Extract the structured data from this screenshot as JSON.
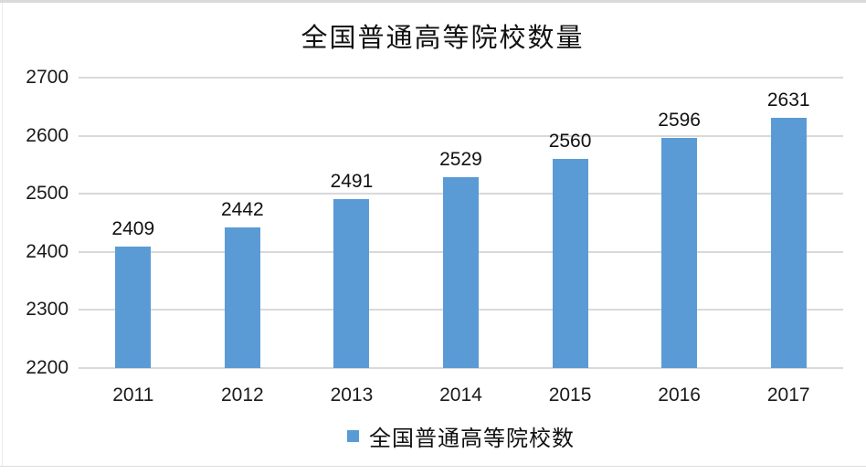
{
  "chart_data": {
    "type": "bar",
    "title": "全国普通高等院校数量",
    "categories": [
      "2011",
      "2012",
      "2013",
      "2014",
      "2015",
      "2016",
      "2017"
    ],
    "values": [
      2409,
      2442,
      2491,
      2529,
      2560,
      2596,
      2631
    ],
    "series_name": "全国普通高等院校数",
    "xlabel": "",
    "ylabel": "",
    "ylim": [
      2200,
      2700
    ],
    "yticks": [
      2200,
      2300,
      2400,
      2500,
      2600,
      2700
    ],
    "grid": "horizontal",
    "data_labels": true,
    "legend_position": "bottom",
    "colors": {
      "bar": "#5B9BD5",
      "gridline": "#D9D9D9",
      "text": "#1A1A1A",
      "background": "#FFFFFF"
    }
  }
}
